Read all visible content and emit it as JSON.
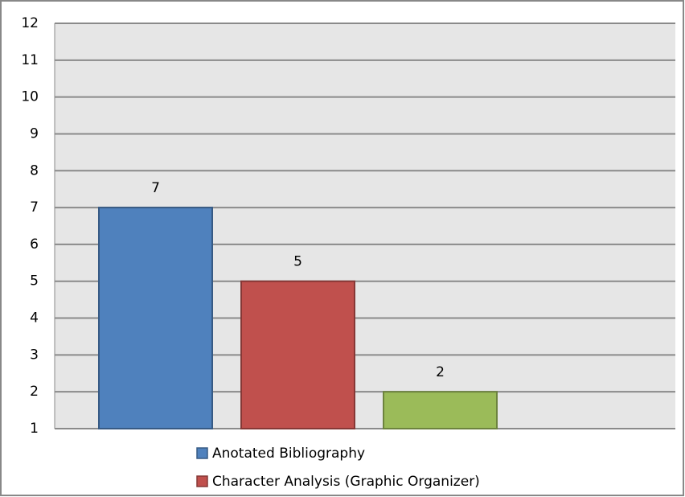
{
  "chart_data": {
    "type": "bar",
    "categories": [
      null
    ],
    "series": [
      {
        "name": "Anotated Bibliography",
        "color": "#4f81bd",
        "values": [
          7
        ]
      },
      {
        "name": "Character Analysis (Graphic Organizer)",
        "color": "#c0504d",
        "values": [
          5
        ]
      },
      {
        "color": "#9bbb59",
        "values": [
          2
        ]
      }
    ],
    "ylim": [
      1,
      12
    ],
    "yticks": [
      1,
      2,
      3,
      4,
      5,
      6,
      7,
      8,
      9,
      10,
      11,
      12
    ],
    "grid": true,
    "legend": "bottom"
  }
}
